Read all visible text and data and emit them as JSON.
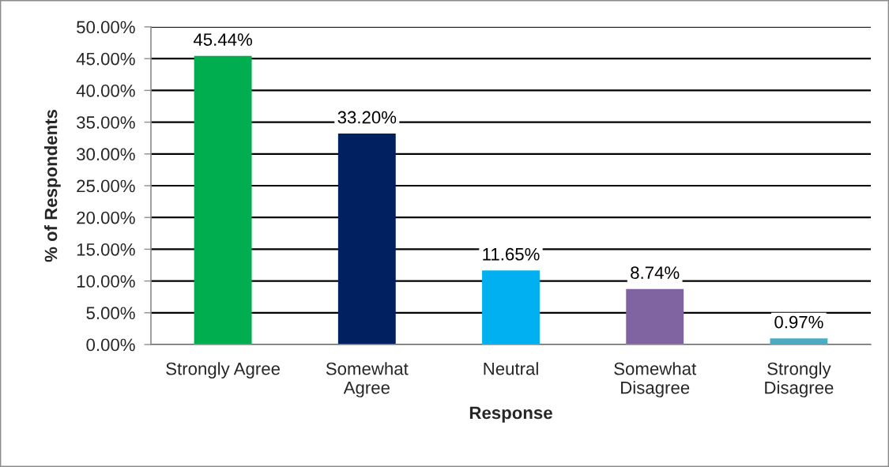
{
  "chart_data": {
    "type": "bar",
    "xlabel": "Response",
    "ylabel": "% of Respondents",
    "categories": [
      "Strongly Agree",
      "Somewhat\nAgree",
      "Neutral",
      "Somewhat\nDisagree",
      "Strongly\nDisagree"
    ],
    "values": [
      45.44,
      33.2,
      11.65,
      8.74,
      0.97
    ],
    "colors": [
      "#00ae4f",
      "#002060",
      "#00b0f0",
      "#8064a2",
      "#4bacc6"
    ],
    "value_labels": [
      "45.44%",
      "33.20%",
      "11.65%",
      "8.74%",
      "0.97%"
    ],
    "ylim": [
      0,
      50
    ],
    "yticks": [
      {
        "value": 0,
        "label": "0.00%"
      },
      {
        "value": 5,
        "label": "5.00%"
      },
      {
        "value": 10,
        "label": "10.00%"
      },
      {
        "value": 15,
        "label": "15.00%"
      },
      {
        "value": 20,
        "label": "20.00%"
      },
      {
        "value": 25,
        "label": "25.00%"
      },
      {
        "value": 30,
        "label": "30.00%"
      },
      {
        "value": 35,
        "label": "35.00%"
      },
      {
        "value": 40,
        "label": "40.00%"
      },
      {
        "value": 45,
        "label": "45.00%"
      },
      {
        "value": 50,
        "label": "50.00%"
      }
    ],
    "grid": "y"
  }
}
